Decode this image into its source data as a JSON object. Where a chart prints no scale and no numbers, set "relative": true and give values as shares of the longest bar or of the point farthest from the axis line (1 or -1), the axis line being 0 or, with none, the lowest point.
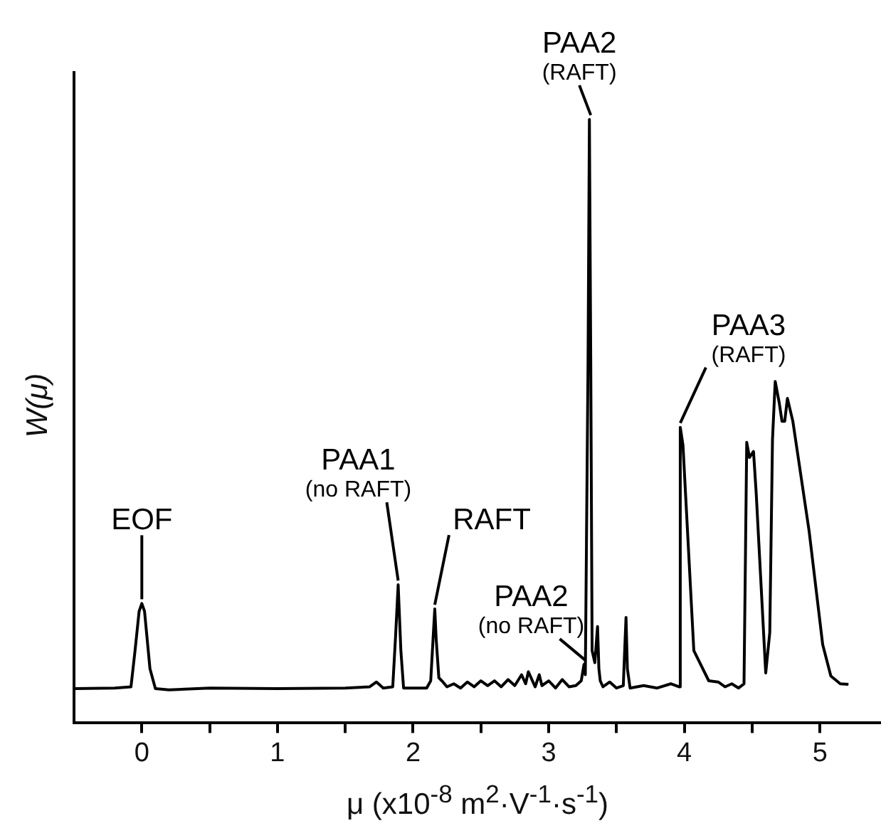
{
  "chart_data": {
    "type": "line",
    "relative": true,
    "xlabel": "μ (x10$^{-8}$ m$^{2}$·V$^{-1}$·s$^{-1}$)",
    "ylabel": "W(μ)",
    "xlim": [
      -0.5,
      5.45
    ],
    "xticks": [
      0,
      {
        "value": 0.5,
        "label": null
      },
      1,
      {
        "value": 1.5,
        "label": null
      },
      2,
      {
        "value": 2.5,
        "label": null
      },
      3,
      {
        "value": 3.5,
        "label": null
      },
      4,
      {
        "value": 4.5,
        "label": null
      },
      5
    ],
    "grid": false,
    "legend": false,
    "marker": "none",
    "line_style": "solid",
    "tick_labels": "x",
    "series": [
      {
        "color": "#000000",
        "x": [
          -0.5,
          -0.2,
          -0.08,
          -0.05,
          -0.02,
          0,
          0.02,
          0.06,
          0.1,
          0.2,
          0.5,
          1.0,
          1.5,
          1.68,
          1.73,
          1.78,
          1.85,
          1.87,
          1.89,
          1.91,
          1.93,
          2.1,
          2.13,
          2.15,
          2.16,
          2.17,
          2.19,
          2.22,
          2.25,
          2.3,
          2.35,
          2.4,
          2.45,
          2.5,
          2.55,
          2.6,
          2.65,
          2.7,
          2.75,
          2.8,
          2.83,
          2.85,
          2.9,
          2.93,
          2.95,
          3.0,
          3.05,
          3.1,
          3.15,
          3.2,
          3.24,
          3.26,
          3.27,
          3.29,
          3.3,
          3.31,
          3.32,
          3.34,
          3.36,
          3.37,
          3.38,
          3.4,
          3.45,
          3.5,
          3.55,
          3.56,
          3.57,
          3.58,
          3.6,
          3.7,
          3.8,
          3.9,
          3.96,
          3.97,
          3.99,
          4.07,
          4.18,
          4.25,
          4.3,
          4.35,
          4.4,
          4.44,
          4.46,
          4.48,
          4.51,
          4.53,
          4.6,
          4.63,
          4.65,
          4.67,
          4.7,
          4.72,
          4.74,
          4.76,
          4.8,
          4.92,
          5.02,
          5.08,
          5.15,
          5.21
        ],
        "values": [
          0.057,
          0.058,
          0.06,
          0.12,
          0.185,
          0.198,
          0.185,
          0.09,
          0.057,
          0.055,
          0.058,
          0.057,
          0.058,
          0.06,
          0.068,
          0.058,
          0.06,
          0.14,
          0.229,
          0.12,
          0.058,
          0.058,
          0.07,
          0.15,
          0.189,
          0.14,
          0.075,
          0.068,
          0.06,
          0.065,
          0.058,
          0.068,
          0.06,
          0.07,
          0.062,
          0.07,
          0.06,
          0.072,
          0.062,
          0.08,
          0.065,
          0.085,
          0.06,
          0.08,
          0.062,
          0.07,
          0.058,
          0.072,
          0.06,
          0.062,
          0.07,
          0.097,
          0.08,
          0.6,
          1.0,
          0.6,
          0.12,
          0.1,
          0.16,
          0.09,
          0.07,
          0.06,
          0.068,
          0.058,
          0.062,
          0.12,
          0.175,
          0.09,
          0.058,
          0.062,
          0.058,
          0.065,
          0.06,
          0.49,
          0.46,
          0.12,
          0.07,
          0.068,
          0.06,
          0.065,
          0.058,
          0.065,
          0.465,
          0.44,
          0.45,
          0.38,
          0.083,
          0.15,
          0.47,
          0.566,
          0.53,
          0.5,
          0.5,
          0.538,
          0.5,
          0.318,
          0.13,
          0.078,
          0.065,
          0.064
        ]
      }
    ],
    "annotations": [
      {
        "text": "EOF",
        "x": 0,
        "y": 0.198
      },
      {
        "text": "PAA1\n(no RAFT)",
        "x": 1.89,
        "y": 0.229
      },
      {
        "text": "RAFT",
        "x": 2.16,
        "y": 0.189
      },
      {
        "text": "PAA2\n(no RAFT)",
        "x": 3.27,
        "y": 0.097
      },
      {
        "text": "PAA2\n(RAFT)",
        "x": 3.31,
        "y": 1.0
      },
      {
        "text": "PAA3\n(RAFT)",
        "x": 3.97,
        "y": 0.49
      }
    ]
  }
}
